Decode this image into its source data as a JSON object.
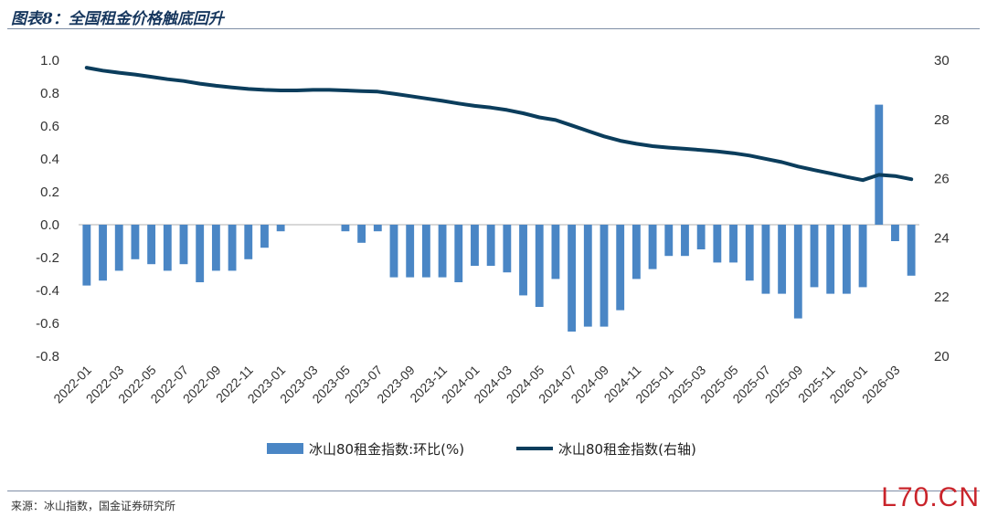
{
  "header": {
    "title": "图表8：全国租金价格触底回升"
  },
  "footer": {
    "source": "来源：冰山指数，国金证券研究所",
    "watermark": "L70.CN"
  },
  "colors": {
    "bar": "#4a86c5",
    "line": "#0b3d5c",
    "rule": "#7f8ea6"
  },
  "chart_data": {
    "type": "bar+line",
    "categories": [
      "2022-01",
      "2022-02",
      "2022-03",
      "2022-04",
      "2022-05",
      "2022-06",
      "2022-07",
      "2022-08",
      "2022-09",
      "2022-10",
      "2022-11",
      "2022-12",
      "2023-01",
      "2023-02",
      "2023-03",
      "2023-04",
      "2023-05",
      "2023-06",
      "2023-07",
      "2023-08",
      "2023-09",
      "2023-10",
      "2023-11",
      "2023-12",
      "2024-01",
      "2024-02",
      "2024-03",
      "2024-04",
      "2024-05",
      "2024-06",
      "2024-07",
      "2024-08",
      "2024-09",
      "2024-10",
      "2024-11",
      "2024-12",
      "2025-01",
      "2025-02",
      "2025-03",
      "2025-04",
      "2025-05",
      "2025-06",
      "2025-07",
      "2025-08",
      "2025-09",
      "2025-10",
      "2025-11",
      "2025-12",
      "2026-01",
      "2026-02",
      "2026-03",
      "2026-04"
    ],
    "x_tick_labels": [
      "2022-01",
      "2022-03",
      "2022-05",
      "2022-07",
      "2022-09",
      "2022-11",
      "2023-01",
      "2023-03",
      "2023-05",
      "2023-07",
      "2023-09",
      "2023-11",
      "2024-01",
      "2024-03",
      "2024-05",
      "2024-07",
      "2024-09",
      "2024-11",
      "2025-01",
      "2025-03",
      "2025-05",
      "2025-07",
      "2025-09",
      "2025-11",
      "2026-01",
      "2026-03"
    ],
    "series": [
      {
        "name": "冰山80租金指数:环比(%)",
        "type": "bar",
        "axis": "left",
        "values": [
          -0.37,
          -0.34,
          -0.28,
          -0.21,
          -0.24,
          -0.28,
          -0.24,
          -0.35,
          -0.28,
          -0.28,
          -0.21,
          -0.14,
          -0.04,
          0.0,
          0.0,
          0.0,
          -0.04,
          -0.11,
          -0.04,
          -0.32,
          -0.32,
          -0.32,
          -0.32,
          -0.35,
          -0.25,
          -0.25,
          -0.29,
          -0.43,
          -0.5,
          -0.33,
          -0.65,
          -0.62,
          -0.62,
          -0.52,
          -0.33,
          -0.27,
          -0.19,
          -0.19,
          -0.15,
          -0.23,
          -0.23,
          -0.34,
          -0.42,
          -0.42,
          -0.57,
          -0.38,
          -0.42,
          -0.42,
          -0.38,
          0.73,
          -0.1,
          -0.31
        ]
      },
      {
        "name": "冰山80租金指数(右轴)",
        "type": "line",
        "axis": "right",
        "values": [
          29.75,
          29.65,
          29.58,
          29.52,
          29.44,
          29.36,
          29.3,
          29.21,
          29.14,
          29.08,
          29.03,
          29.0,
          28.98,
          28.98,
          29.0,
          29.0,
          28.98,
          28.96,
          28.94,
          28.87,
          28.79,
          28.71,
          28.63,
          28.54,
          28.46,
          28.4,
          28.32,
          28.21,
          28.07,
          27.98,
          27.8,
          27.61,
          27.43,
          27.28,
          27.18,
          27.1,
          27.05,
          27.01,
          26.97,
          26.92,
          26.86,
          26.78,
          26.67,
          26.56,
          26.41,
          26.29,
          26.18,
          26.06,
          25.95,
          26.13,
          26.09,
          25.98
        ]
      }
    ],
    "y_left": {
      "min": -0.8,
      "max": 1.0,
      "ticks": [
        "1.0",
        "0.8",
        "0.6",
        "0.4",
        "0.2",
        "0.0",
        "-0.2",
        "-0.4",
        "-0.6",
        "-0.8"
      ]
    },
    "y_right": {
      "min": 20,
      "max": 30,
      "ticks": [
        "30",
        "28",
        "26",
        "24",
        "22",
        "20"
      ]
    },
    "legend_position": "bottom-center",
    "grid": false
  }
}
